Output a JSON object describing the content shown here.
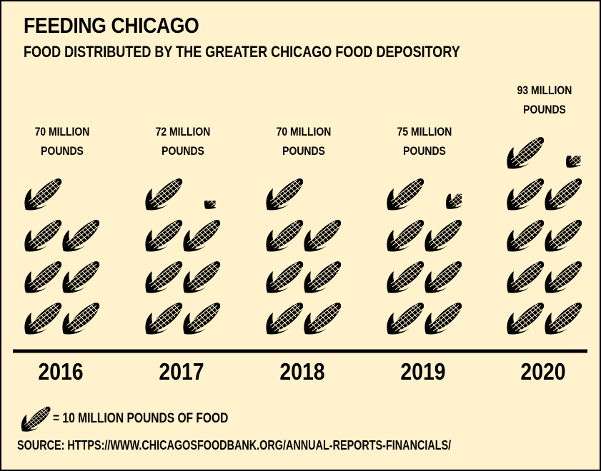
{
  "title": "FEEDING CHICAGO",
  "subtitle": "FOOD DISTRIBUTED BY THE GREATER CHICAGO FOOD DEPOSITORY",
  "legend": {
    "icon": "corn-icon",
    "text": "= 10 MILLION POUNDS OF FOOD"
  },
  "source": "SOURCE: HTTPS://WWW.CHICAGOSFOODBANK.ORG/ANNUAL-REPORTS-FINANCIALS/",
  "colors": {
    "background": "#fff2cc",
    "ink": "#000000"
  },
  "chart_data": {
    "type": "pictograph",
    "unit": "million pounds",
    "icon_value": 10,
    "categories": [
      "2016",
      "2017",
      "2018",
      "2019",
      "2020"
    ],
    "values": [
      70,
      72,
      70,
      75,
      93
    ],
    "labels": [
      "70 MILLION\nPOUNDS",
      "72 MILLION\nPOUNDS",
      "70 MILLION\nPOUNDS",
      "75 MILLION\nPOUNDS",
      "93 MILLION\nPOUNDS"
    ]
  }
}
